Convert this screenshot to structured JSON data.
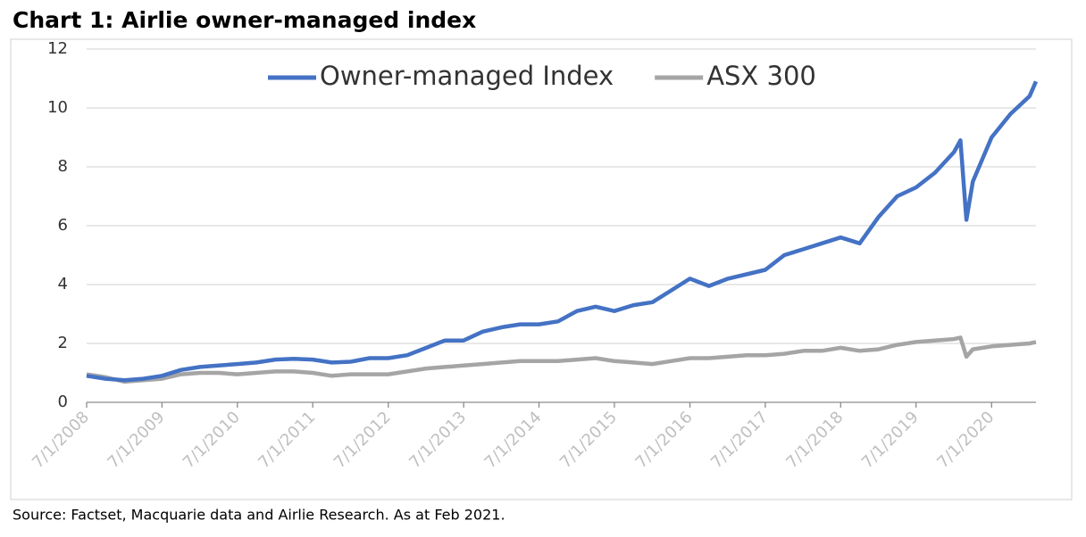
{
  "chart_data": {
    "type": "line",
    "title": "Chart 1: Airlie owner-managed index",
    "source": "Source: Factset, Macquarie data and Airlie Research. As at Feb 2021.",
    "x": [
      "7/1/2008",
      "10/1/2008",
      "1/1/2009",
      "4/1/2009",
      "7/1/2009",
      "10/1/2009",
      "1/1/2010",
      "4/1/2010",
      "7/1/2010",
      "10/1/2010",
      "1/1/2011",
      "4/1/2011",
      "7/1/2011",
      "10/1/2011",
      "1/1/2012",
      "4/1/2012",
      "7/1/2012",
      "10/1/2012",
      "1/1/2013",
      "4/1/2013",
      "7/1/2013",
      "10/1/2013",
      "1/1/2014",
      "4/1/2014",
      "7/1/2014",
      "10/1/2014",
      "1/1/2015",
      "4/1/2015",
      "7/1/2015",
      "10/1/2015",
      "1/1/2016",
      "4/1/2016",
      "7/1/2016",
      "10/1/2016",
      "1/1/2017",
      "4/1/2017",
      "7/1/2017",
      "10/1/2017",
      "1/1/2018",
      "4/1/2018",
      "7/1/2018",
      "10/1/2018",
      "1/1/2019",
      "4/1/2019",
      "7/1/2019",
      "10/1/2019",
      "1/1/2020",
      "2/1/2020",
      "3/1/2020",
      "4/1/2020",
      "7/1/2020",
      "10/1/2020",
      "1/1/2021",
      "2/1/2021"
    ],
    "series": [
      {
        "name": "Owner-managed Index",
        "color": "#4472c4",
        "values": [
          0.9,
          0.8,
          0.75,
          0.8,
          0.9,
          1.1,
          1.2,
          1.25,
          1.3,
          1.35,
          1.45,
          1.48,
          1.45,
          1.35,
          1.38,
          1.5,
          1.5,
          1.6,
          1.85,
          2.1,
          2.1,
          2.4,
          2.55,
          2.65,
          2.65,
          2.75,
          3.1,
          3.25,
          3.1,
          3.3,
          3.4,
          3.8,
          4.2,
          3.95,
          4.2,
          4.35,
          4.5,
          5.0,
          5.2,
          5.4,
          5.6,
          5.4,
          6.3,
          7.0,
          7.3,
          7.8,
          8.5,
          8.9,
          6.2,
          7.5,
          9.0,
          9.8,
          10.4,
          10.9
        ]
      },
      {
        "name": "ASX 300",
        "color": "#a5a5a5",
        "values": [
          0.95,
          0.85,
          0.7,
          0.75,
          0.8,
          0.95,
          1.0,
          1.0,
          0.95,
          1.0,
          1.05,
          1.05,
          1.0,
          0.9,
          0.95,
          0.95,
          0.95,
          1.05,
          1.15,
          1.2,
          1.25,
          1.3,
          1.35,
          1.4,
          1.4,
          1.4,
          1.45,
          1.5,
          1.4,
          1.35,
          1.3,
          1.4,
          1.5,
          1.5,
          1.55,
          1.6,
          1.6,
          1.65,
          1.75,
          1.75,
          1.85,
          1.75,
          1.8,
          1.95,
          2.05,
          2.1,
          2.15,
          2.2,
          1.55,
          1.8,
          1.9,
          1.95,
          2.0,
          2.05
        ]
      }
    ],
    "xlim": [
      "7/1/2008",
      "2/1/2021"
    ],
    "xticks": [
      "7/1/2008",
      "7/1/2009",
      "7/1/2010",
      "7/1/2011",
      "7/1/2012",
      "7/1/2013",
      "7/1/2014",
      "7/1/2015",
      "7/1/2016",
      "7/1/2017",
      "7/1/2018",
      "7/1/2019",
      "7/1/2020"
    ],
    "ylim": [
      0,
      12
    ],
    "yticks": [
      0,
      2,
      4,
      6,
      8,
      10,
      12
    ],
    "grid": true,
    "legend": "top"
  }
}
